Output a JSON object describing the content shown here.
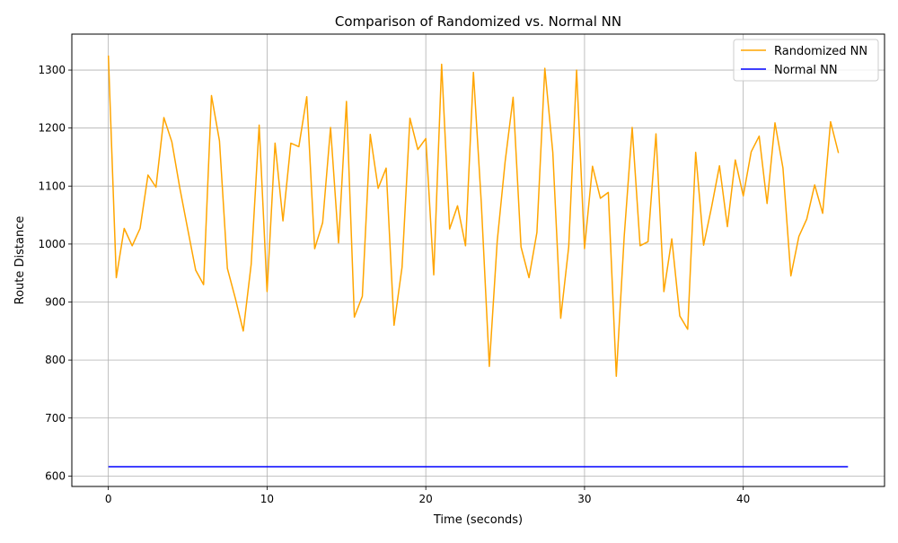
{
  "chart_data": {
    "type": "line",
    "title": "Comparison of Randomized vs. Normal NN",
    "xlabel": "Time (seconds)",
    "ylabel": "Route Distance",
    "xlim": [
      -2.3,
      48.9
    ],
    "ylim": [
      582,
      1362
    ],
    "xticks": [
      0,
      10,
      20,
      30,
      40
    ],
    "yticks": [
      600,
      700,
      800,
      900,
      1000,
      1100,
      1200,
      1300
    ],
    "grid": true,
    "legend_position": "top-right",
    "series": [
      {
        "name": "Randomized NN",
        "color": "#ffa500",
        "x": [
          0.0,
          0.5,
          1.0,
          1.5,
          2.0,
          2.5,
          3.0,
          3.5,
          4.0,
          4.5,
          5.0,
          5.5,
          6.0,
          6.5,
          7.0,
          7.5,
          8.0,
          8.5,
          9.0,
          9.5,
          10.0,
          10.5,
          11.0,
          11.5,
          12.0,
          12.5,
          13.0,
          13.5,
          14.0,
          14.5,
          15.0,
          15.5,
          16.0,
          16.5,
          17.0,
          17.5,
          18.0,
          18.5,
          19.0,
          19.5,
          20.0,
          20.5,
          21.0,
          21.5,
          22.0,
          22.5,
          23.0,
          23.5,
          24.0,
          24.5,
          25.0,
          25.5,
          26.0,
          26.5,
          27.0,
          27.5,
          28.0,
          28.5,
          29.0,
          29.5,
          30.0,
          30.5,
          31.0,
          31.5,
          32.0,
          32.5,
          33.0,
          33.5,
          34.0,
          34.5,
          35.0,
          35.5,
          36.0,
          36.5,
          37.0,
          37.5,
          38.0,
          38.5,
          39.0,
          39.5,
          40.0,
          40.5,
          41.0,
          41.5,
          42.0,
          42.5,
          43.0,
          43.5,
          44.0,
          44.5,
          45.0,
          45.5,
          46.0
        ],
        "y": [
          1325,
          942,
          1027,
          997,
          1027,
          1119,
          1098,
          1218,
          1176,
          1097,
          1026,
          955,
          930,
          1256,
          1178,
          958,
          906,
          850,
          965,
          1205,
          918,
          1174,
          1040,
          1174,
          1168,
          1254,
          992,
          1037,
          1201,
          1002,
          1246,
          874,
          910,
          1189,
          1096,
          1131,
          860,
          960,
          1217,
          1163,
          1182,
          947,
          1310,
          1026,
          1066,
          997,
          1296,
          1070,
          789,
          1005,
          1142,
          1253,
          995,
          942,
          1020,
          1303,
          1158,
          872,
          995,
          1300,
          992,
          1134,
          1079,
          1089,
          772,
          1013,
          1201,
          997,
          1004,
          1190,
          918,
          1009,
          876,
          853,
          1158,
          998,
          1063,
          1135,
          1030,
          1145,
          1083,
          1159,
          1186,
          1070,
          1209,
          1131,
          945,
          1013,
          1043,
          1102,
          1053,
          1211,
          1157
        ]
      },
      {
        "name": "Normal NN",
        "color": "#0000ff",
        "x": [
          0.0,
          46.6
        ],
        "y": [
          616,
          616
        ]
      }
    ]
  }
}
